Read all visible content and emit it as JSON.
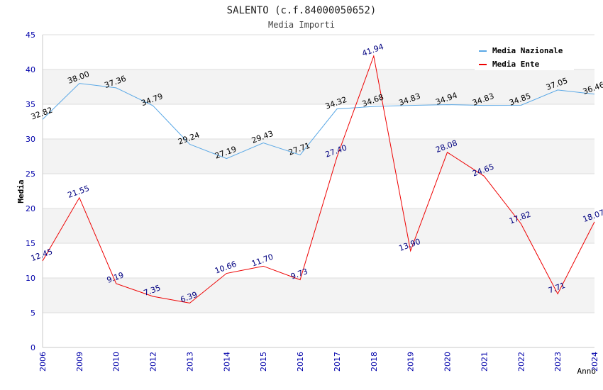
{
  "chart_data": {
    "type": "line",
    "title": "SALENTO (c.f.84000050652)",
    "subtitle": "Media Importi",
    "xlabel": "Anno",
    "ylabel": "Media",
    "ylim": [
      0,
      45
    ],
    "yticks": [
      "0",
      "5",
      "10",
      "15",
      "20",
      "25",
      "30",
      "35",
      "40",
      "45"
    ],
    "categories": [
      "2006",
      "2009",
      "2010",
      "2012",
      "2013",
      "2014",
      "2015",
      "2016",
      "2017",
      "2018",
      "2019",
      "2020",
      "2021",
      "2022",
      "2023",
      "2024"
    ],
    "legend_position": "top-right",
    "series": [
      {
        "name": "Media Nazionale",
        "color": "#5aa8e6",
        "label_color": "#000000",
        "values": [
          32.82,
          38.0,
          37.36,
          34.79,
          29.24,
          27.19,
          29.43,
          27.71,
          34.32,
          34.68,
          34.83,
          34.94,
          34.83,
          34.85,
          37.05,
          36.46
        ],
        "labels": [
          "32.82",
          "38.00",
          "37.36",
          "34.79",
          "29.24",
          "27.19",
          "29.43",
          "27.71",
          "34.32",
          "34.68",
          "34.83",
          "34.94",
          "34.83",
          "34.85",
          "37.05",
          "36.46"
        ]
      },
      {
        "name": "Media Ente",
        "color": "#ee0000",
        "label_color": "#000080",
        "values": [
          12.45,
          21.55,
          9.19,
          7.35,
          6.39,
          10.66,
          11.7,
          9.73,
          27.4,
          41.94,
          13.9,
          28.08,
          24.65,
          17.82,
          7.71,
          18.07
        ],
        "labels": [
          "12.45",
          "21.55",
          "9.19",
          "7.35",
          "6.39",
          "10.66",
          "11.70",
          "9.73",
          "27.40",
          "41.94",
          "13.90",
          "28.08",
          "24.65",
          "17.82",
          "7.71",
          "18.07"
        ]
      }
    ]
  }
}
